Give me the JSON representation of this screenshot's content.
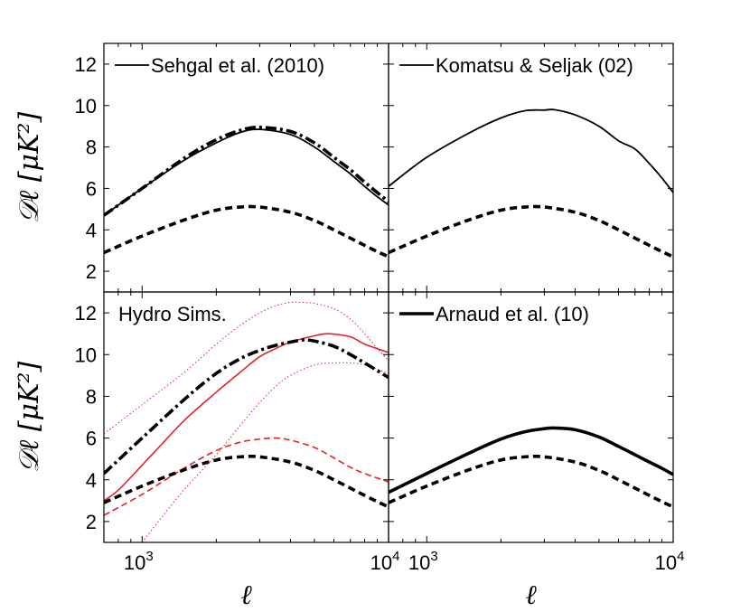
{
  "chart_data": [
    {
      "type": "line",
      "position": "top-left",
      "legend_label": "Sehgal et al. (2010)",
      "legend_style": "thin-solid",
      "ylabel": "𝒟ℓ  [μK²]",
      "xlabel": "",
      "xscale": "log",
      "xlim": [
        700,
        10000
      ],
      "ylim": [
        1,
        13
      ],
      "yticks": [
        2,
        4,
        6,
        8,
        10,
        12
      ],
      "xticks": [],
      "series": [
        {
          "name": "Sehgal et al. (2010)",
          "style": "thin-solid",
          "color": "#000000",
          "x": [
            700,
            1000,
            1500,
            2000,
            2500,
            3000,
            4000,
            5000,
            6000,
            7000,
            8000,
            9000,
            10000
          ],
          "y": [
            4.7,
            6.0,
            7.4,
            8.2,
            8.7,
            8.85,
            8.6,
            8.0,
            7.3,
            6.7,
            6.1,
            5.6,
            5.2
          ]
        },
        {
          "name": "model dash-dot",
          "style": "thick-dashdot",
          "color": "#000000",
          "x": [
            700,
            1000,
            1500,
            2000,
            2500,
            3000,
            4000,
            5000,
            6000,
            7000,
            8000,
            9000,
            10000
          ],
          "y": [
            4.7,
            6.0,
            7.5,
            8.35,
            8.8,
            8.95,
            8.75,
            8.2,
            7.5,
            6.9,
            6.3,
            5.8,
            5.35
          ]
        },
        {
          "name": "thermal SZ (reference)",
          "style": "thick-dashed",
          "color": "#000000",
          "x": [
            700,
            1000,
            1500,
            2000,
            2500,
            3000,
            4000,
            5000,
            6000,
            7000,
            8000,
            9000,
            10000
          ],
          "y": [
            2.9,
            3.7,
            4.5,
            4.95,
            5.1,
            5.1,
            4.85,
            4.45,
            4.0,
            3.6,
            3.25,
            2.95,
            2.7
          ]
        }
      ]
    },
    {
      "type": "line",
      "position": "top-right",
      "legend_label": "Komatsu & Seljak (02)",
      "legend_style": "thin-solid",
      "ylabel": "",
      "xlabel": "",
      "xscale": "log",
      "xlim": [
        700,
        10000
      ],
      "ylim": [
        1,
        13
      ],
      "yticks": [],
      "xticks": [],
      "series": [
        {
          "name": "Komatsu & Seljak (02)",
          "style": "thin-solid",
          "color": "#000000",
          "x": [
            700,
            1000,
            1500,
            2000,
            2500,
            3000,
            3300,
            4000,
            5000,
            6000,
            7000,
            8000,
            9000,
            10000
          ],
          "y": [
            6.1,
            7.5,
            8.7,
            9.4,
            9.75,
            9.78,
            9.8,
            9.55,
            9.0,
            8.3,
            7.9,
            7.2,
            6.5,
            5.8
          ]
        },
        {
          "name": "thermal SZ (reference)",
          "style": "thick-dashed",
          "color": "#000000",
          "x": [
            700,
            1000,
            1500,
            2000,
            2500,
            3000,
            4000,
            5000,
            6000,
            7000,
            8000,
            9000,
            10000
          ],
          "y": [
            2.9,
            3.7,
            4.5,
            4.95,
            5.1,
            5.1,
            4.85,
            4.45,
            4.0,
            3.6,
            3.25,
            2.95,
            2.7
          ]
        }
      ]
    },
    {
      "type": "line",
      "position": "bottom-left",
      "legend_label": "Hydro Sims.",
      "legend_style": "none",
      "ylabel": "𝒟ℓ  [μK²]",
      "xlabel": "ℓ",
      "xscale": "log",
      "xlim": [
        700,
        10000
      ],
      "ylim": [
        1,
        13
      ],
      "yticks": [
        2,
        4,
        6,
        8,
        10,
        12
      ],
      "xticks": [
        {
          "value": 1000,
          "label": "10",
          "exp": "3"
        },
        {
          "value": 10000,
          "label": "10",
          "exp": "4"
        }
      ],
      "series": [
        {
          "name": "hydro mean",
          "style": "red-solid",
          "color": "#e8202a",
          "x": [
            700,
            800,
            1000,
            1200,
            1500,
            2000,
            2500,
            3000,
            3500,
            4000,
            5000,
            5700,
            7000,
            8000,
            10000
          ],
          "y": [
            3.0,
            3.5,
            4.7,
            5.7,
            6.9,
            8.2,
            9.15,
            9.9,
            10.3,
            10.6,
            10.9,
            11.0,
            10.85,
            10.5,
            10.1
          ]
        },
        {
          "name": "hydro upper",
          "style": "red-dotted",
          "color": "#e8202a",
          "x": [
            700,
            1000,
            1500,
            2000,
            2500,
            3000,
            3500,
            4000,
            4500,
            5000,
            6000,
            7000,
            8000,
            9000,
            10000
          ],
          "y": [
            6.2,
            7.6,
            9.2,
            10.5,
            11.4,
            12.0,
            12.35,
            12.5,
            12.5,
            12.45,
            12.2,
            11.7,
            11.0,
            10.3,
            9.7
          ]
        },
        {
          "name": "hydro lower",
          "style": "red-dotted",
          "color": "#e8202a",
          "x": [
            1000,
            1200,
            1500,
            2000,
            2500,
            3000,
            3500,
            4000,
            5000,
            6000,
            7000,
            8000,
            10000
          ],
          "y": [
            1.0,
            2.2,
            3.6,
            5.2,
            6.6,
            7.7,
            8.5,
            9.0,
            9.5,
            9.6,
            9.6,
            9.5,
            9.1
          ]
        },
        {
          "name": "hydro dashed",
          "style": "red-dashed",
          "color": "#e8202a",
          "x": [
            700,
            1000,
            1500,
            2000,
            2500,
            3000,
            3500,
            4000,
            5000,
            6000,
            7000,
            8000,
            10000
          ],
          "y": [
            2.3,
            3.3,
            4.6,
            5.4,
            5.8,
            5.95,
            6.0,
            5.9,
            5.55,
            5.05,
            4.6,
            4.3,
            3.9
          ]
        },
        {
          "name": "model dash-dot",
          "style": "thick-dashdot",
          "color": "#000000",
          "x": [
            700,
            1000,
            1500,
            2000,
            2500,
            3000,
            3500,
            4000,
            4500,
            5000,
            6000,
            7000,
            8000,
            10000
          ],
          "y": [
            4.3,
            6.0,
            7.9,
            9.1,
            9.8,
            10.2,
            10.45,
            10.6,
            10.7,
            10.65,
            10.4,
            10.0,
            9.6,
            8.9
          ]
        },
        {
          "name": "thermal SZ (reference)",
          "style": "thick-dashed",
          "color": "#000000",
          "x": [
            700,
            1000,
            1500,
            2000,
            2500,
            3000,
            4000,
            5000,
            6000,
            7000,
            8000,
            9000,
            10000
          ],
          "y": [
            2.9,
            3.7,
            4.5,
            4.95,
            5.1,
            5.1,
            4.85,
            4.45,
            4.0,
            3.6,
            3.25,
            2.95,
            2.7
          ]
        }
      ]
    },
    {
      "type": "line",
      "position": "bottom-right",
      "legend_label": "Arnaud et al. (10)",
      "legend_style": "thick-solid",
      "ylabel": "",
      "xlabel": "ℓ",
      "xscale": "log",
      "xlim": [
        700,
        10000
      ],
      "ylim": [
        1,
        13
      ],
      "yticks": [],
      "xticks": [
        {
          "value": 1000,
          "label": "10",
          "exp": "3"
        },
        {
          "value": 10000,
          "label": "10",
          "exp": "4"
        }
      ],
      "series": [
        {
          "name": "Arnaud et al. (10)",
          "style": "thick-solid",
          "color": "#000000",
          "x": [
            700,
            1000,
            1500,
            2000,
            2500,
            3000,
            3300,
            4000,
            5000,
            6000,
            7000,
            8000,
            9000,
            10000
          ],
          "y": [
            3.4,
            4.3,
            5.3,
            5.95,
            6.3,
            6.45,
            6.48,
            6.4,
            6.05,
            5.6,
            5.2,
            4.85,
            4.55,
            4.25
          ]
        },
        {
          "name": "thermal SZ (reference)",
          "style": "thick-dashed",
          "color": "#000000",
          "x": [
            700,
            1000,
            1500,
            2000,
            2500,
            3000,
            4000,
            5000,
            6000,
            7000,
            8000,
            9000,
            10000
          ],
          "y": [
            2.9,
            3.7,
            4.5,
            4.95,
            5.1,
            5.1,
            4.85,
            4.45,
            4.0,
            3.6,
            3.25,
            2.95,
            2.7
          ]
        }
      ]
    }
  ]
}
